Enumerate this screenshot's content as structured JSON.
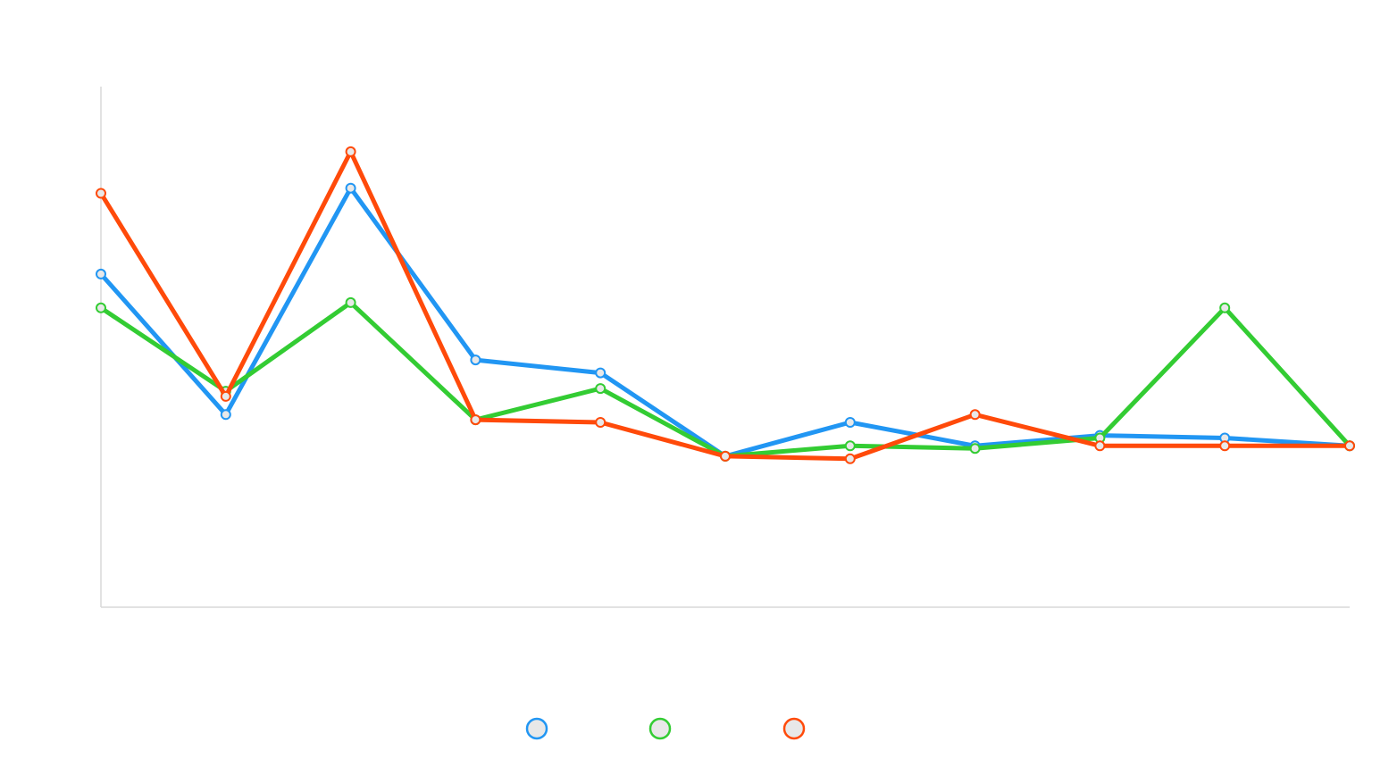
{
  "chart_data": {
    "type": "line",
    "x": [
      "",
      "",
      "",
      "",
      "",
      "",
      "",
      "",
      "",
      "",
      ""
    ],
    "ylim": [
      0,
      100
    ],
    "grid": false,
    "legend_position": "bottom",
    "series": [
      {
        "color": "#2196f3",
        "values": [
          64,
          37,
          80.5,
          47.5,
          45,
          29,
          35.5,
          31,
          33,
          32.5,
          31
        ]
      },
      {
        "color": "#33cc33",
        "values": [
          57.5,
          41.5,
          58.5,
          36,
          42,
          29,
          31,
          30.5,
          32.5,
          57.5,
          31
        ]
      },
      {
        "color": "#ff4a0a",
        "values": [
          79.5,
          40.5,
          87.5,
          36,
          35.5,
          29,
          28.5,
          37,
          31,
          31,
          31
        ]
      }
    ]
  }
}
